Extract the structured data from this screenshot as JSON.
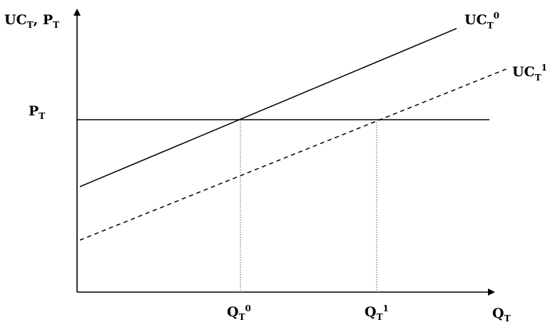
{
  "axes": {
    "y_label": {
      "main": "UC",
      "sub1": "T",
      "mid": ", P",
      "sub2": "T"
    },
    "x_label": {
      "main": "Q",
      "sub": "T"
    }
  },
  "price_line": {
    "main": "P",
    "sub": "T"
  },
  "curves": {
    "uc0": {
      "main": "UC",
      "sub": "T",
      "sup": "0",
      "style": "solid"
    },
    "uc1": {
      "main": "UC",
      "sub": "T",
      "sup": "1",
      "style": "dashed"
    }
  },
  "x_ticks": {
    "q0": {
      "main": "Q",
      "sub": "T",
      "sup": "0"
    },
    "q1": {
      "main": "Q",
      "sub": "T",
      "sup": "1"
    }
  },
  "colors": {
    "lines": "#000000",
    "guides": "#555555",
    "background": "#ffffff"
  }
}
